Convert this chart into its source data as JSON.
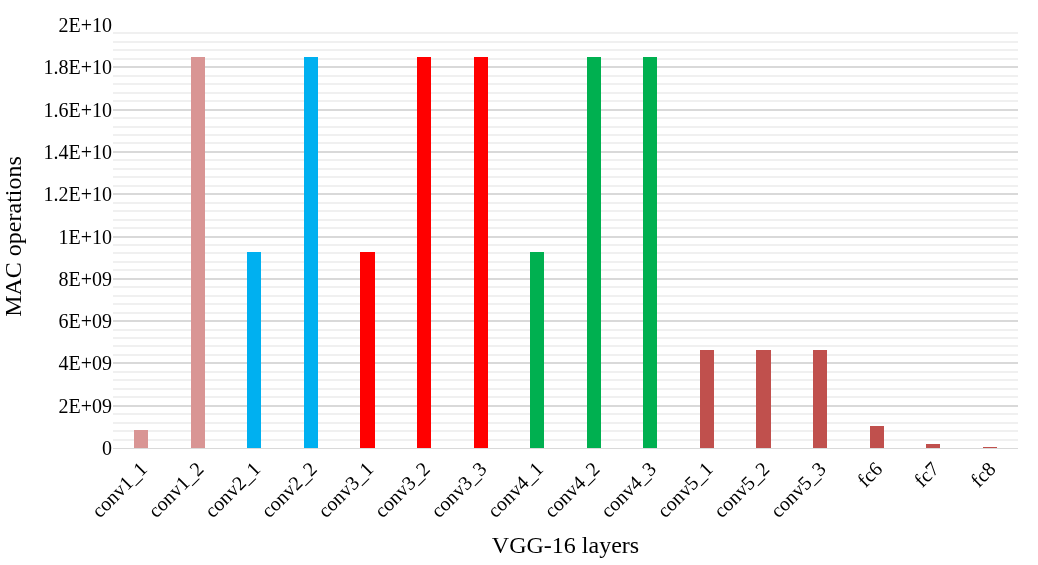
{
  "chart_data": {
    "type": "bar",
    "xlabel": "VGG-16 layers",
    "ylabel": "MAC operations",
    "categories": [
      "conv1_1",
      "conv1_2",
      "conv2_1",
      "conv2_2",
      "conv3_1",
      "conv3_2",
      "conv3_3",
      "conv4_1",
      "conv4_2",
      "conv4_3",
      "conv5_1",
      "conv5_2",
      "conv5_3",
      "fc6",
      "fc7",
      "fc8"
    ],
    "values": [
      870000000,
      18500000000,
      9250000000,
      18500000000,
      9250000000,
      18500000000,
      18500000000,
      9250000000,
      18500000000,
      18500000000,
      4620000000,
      4620000000,
      4620000000,
      1030000000,
      170000000,
      40000000
    ],
    "colors": [
      "#d99594",
      "#d99594",
      "#00b0f0",
      "#00b0f0",
      "#ff0000",
      "#ff0000",
      "#ff0000",
      "#00b050",
      "#00b050",
      "#00b050",
      "#c0504d",
      "#c0504d",
      "#c0504d",
      "#c0504d",
      "#c0504d",
      "#c0504d"
    ],
    "ylim": [
      0,
      20000000000
    ],
    "yticks": [
      {
        "value": 0,
        "label": "0"
      },
      {
        "value": 2000000000,
        "label": "2E+09"
      },
      {
        "value": 4000000000,
        "label": "4E+09"
      },
      {
        "value": 6000000000,
        "label": "6E+09"
      },
      {
        "value": 8000000000,
        "label": "8E+09"
      },
      {
        "value": 10000000000,
        "label": "1E+10"
      },
      {
        "value": 12000000000,
        "label": "1.2E+10"
      },
      {
        "value": 14000000000,
        "label": "1.4E+10"
      },
      {
        "value": 16000000000,
        "label": "1.6E+10"
      },
      {
        "value": 18000000000,
        "label": "1.8E+10"
      },
      {
        "value": 20000000000,
        "label": "2E+10"
      }
    ],
    "grid": "y"
  }
}
